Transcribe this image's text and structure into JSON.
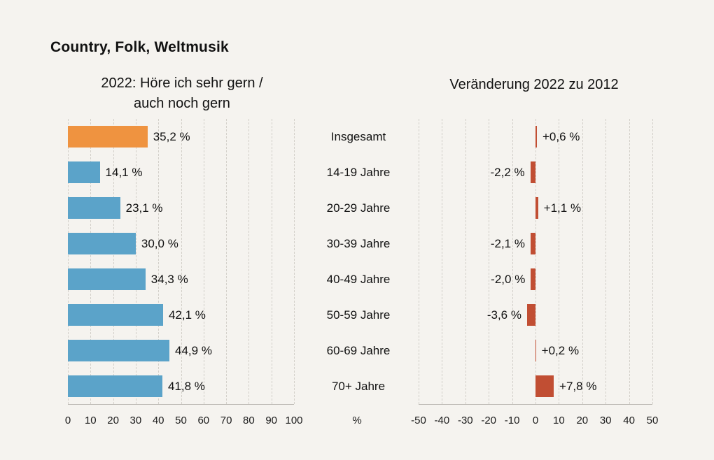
{
  "title": "Country, Folk, Weltmusik",
  "left_chart": {
    "subtitle_line1": "2022: Höre ich sehr gern /",
    "subtitle_line2": "auch noch gern"
  },
  "right_chart": {
    "subtitle": "Veränderung 2022 zu 2012"
  },
  "colors": {
    "background": "#f5f3ef",
    "bar_blue": "#5ba3c9",
    "bar_highlight_orange": "#ef9340",
    "bar_change_red": "#c14e33",
    "gridline": "#d2cfc9",
    "text": "#111111"
  },
  "chart_data": [
    {
      "type": "bar",
      "orientation": "horizontal",
      "title": "2022: Höre ich sehr gern / auch noch gern",
      "categories": [
        "Insgesamt",
        "14-19 Jahre",
        "20-29 Jahre",
        "30-39 Jahre",
        "40-49 Jahre",
        "50-59 Jahre",
        "60-69 Jahre",
        "70+ Jahre"
      ],
      "values": [
        35.2,
        14.1,
        23.1,
        30.0,
        34.3,
        42.1,
        44.9,
        41.8
      ],
      "value_labels": [
        "35,2 %",
        "14,1 %",
        "23,1 %",
        "30,0 %",
        "34,3 %",
        "42,1 %",
        "44,9 %",
        "41,8 %"
      ],
      "xlim": [
        0,
        100
      ],
      "xticks": [
        "0",
        "10",
        "20",
        "30",
        "40",
        "50",
        "60",
        "70",
        "80",
        "90",
        "100"
      ],
      "xlabel": "%",
      "bar_colors": [
        "#ef9340",
        "#5ba3c9",
        "#5ba3c9",
        "#5ba3c9",
        "#5ba3c9",
        "#5ba3c9",
        "#5ba3c9",
        "#5ba3c9"
      ],
      "grid": "dashed-vertical",
      "legend": "none"
    },
    {
      "type": "bar",
      "orientation": "horizontal",
      "title": "Veränderung 2022 zu 2012",
      "categories": [
        "Insgesamt",
        "14-19 Jahre",
        "20-29 Jahre",
        "30-39 Jahre",
        "40-49 Jahre",
        "50-59 Jahre",
        "60-69 Jahre",
        "70+ Jahre"
      ],
      "values": [
        0.6,
        -2.2,
        1.1,
        -2.1,
        -2.0,
        -3.6,
        0.2,
        7.8
      ],
      "value_labels": [
        "+0,6 %",
        "-2,2 %",
        "+1,1 %",
        "-2,1 %",
        "-2,0 %",
        "-3,6 %",
        "+0,2 %",
        "+7,8 %"
      ],
      "xlim": [
        -50,
        50
      ],
      "xticks": [
        "-50",
        "-40",
        "-30",
        "-20",
        "-10",
        "0",
        "10",
        "20",
        "30",
        "40",
        "50"
      ],
      "xlabel": "",
      "bar_colors": [
        "#c14e33",
        "#c14e33",
        "#c14e33",
        "#c14e33",
        "#c14e33",
        "#c14e33",
        "#c14e33",
        "#c14e33"
      ],
      "grid": "dashed-vertical",
      "legend": "none"
    }
  ]
}
